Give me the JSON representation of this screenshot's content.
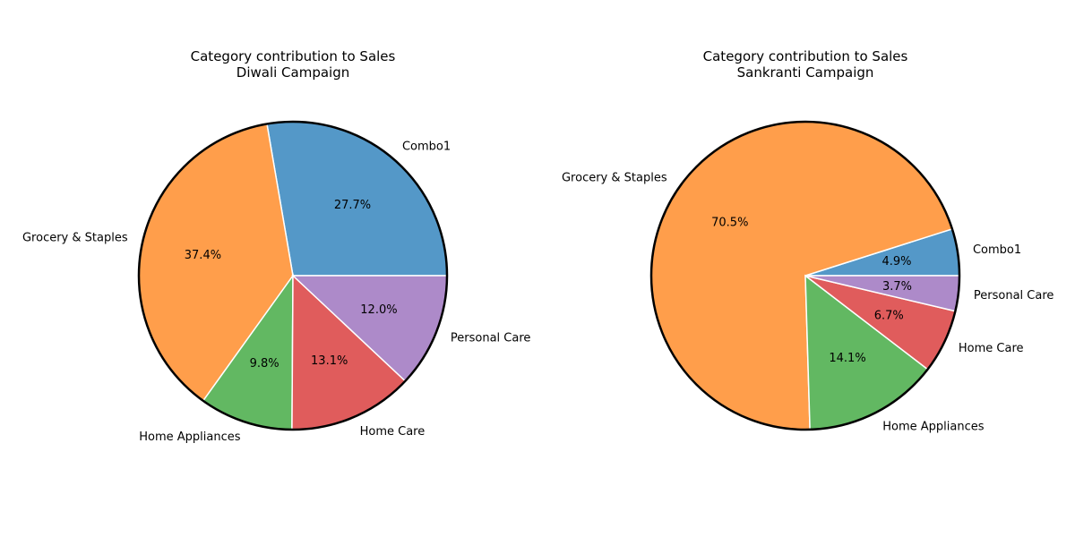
{
  "chart_data": [
    {
      "type": "pie",
      "title": "Category contribution to Sales",
      "subtitle": "Diwali Campaign",
      "slices": [
        {
          "label": "Combo1",
          "value": 27.7,
          "pct_label": "27.7%",
          "color": "#5498c8"
        },
        {
          "label": "Grocery & Staples",
          "value": 37.4,
          "pct_label": "37.4%",
          "color": "#ff9e4b"
        },
        {
          "label": "Home Appliances",
          "value": 9.8,
          "pct_label": "9.8%",
          "color": "#62b862"
        },
        {
          "label": "Home Care",
          "value": 13.1,
          "pct_label": "13.1%",
          "color": "#e05c5c"
        },
        {
          "label": "Personal Care",
          "value": 12.0,
          "pct_label": "12.0%",
          "color": "#ad8ac9"
        }
      ]
    },
    {
      "type": "pie",
      "title": "Category contribution to Sales",
      "subtitle": "Sankranti Campaign",
      "slices": [
        {
          "label": "Combo1",
          "value": 4.9,
          "pct_label": "4.9%",
          "color": "#5498c8"
        },
        {
          "label": "Grocery & Staples",
          "value": 70.5,
          "pct_label": "70.5%",
          "color": "#ff9e4b"
        },
        {
          "label": "Home Appliances",
          "value": 14.1,
          "pct_label": "14.1%",
          "color": "#62b862"
        },
        {
          "label": "Home Care",
          "value": 6.7,
          "pct_label": "6.7%",
          "color": "#e05c5c"
        },
        {
          "label": "Personal Care",
          "value": 3.7,
          "pct_label": "3.7%",
          "color": "#ad8ac9"
        }
      ]
    }
  ]
}
